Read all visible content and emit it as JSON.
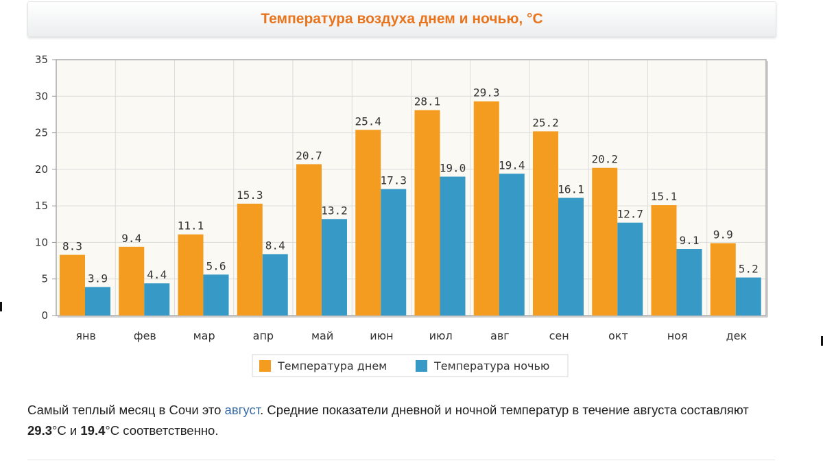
{
  "header": {
    "title": "Температура воздуха днем и ночью, °C"
  },
  "chart_data": {
    "type": "bar",
    "title": "Температура воздуха днем и ночью, °C",
    "categories": [
      "янв",
      "фев",
      "мар",
      "апр",
      "май",
      "июн",
      "июл",
      "авг",
      "сен",
      "окт",
      "ноя",
      "дек"
    ],
    "series": [
      {
        "name": "Температура днем",
        "color": "#f39c1f",
        "values": [
          8.3,
          9.4,
          11.1,
          15.3,
          20.7,
          25.4,
          28.1,
          29.3,
          25.2,
          20.2,
          15.1,
          9.9
        ]
      },
      {
        "name": "Температура ночью",
        "color": "#3799c6",
        "values": [
          3.9,
          4.4,
          5.6,
          8.4,
          13.2,
          17.3,
          19.0,
          19.4,
          16.1,
          12.7,
          9.1,
          5.2
        ]
      }
    ],
    "ylim": [
      0,
      35
    ],
    "yticks": [
      0,
      5,
      10,
      15,
      20,
      25,
      30,
      35
    ],
    "xlabel": "",
    "ylabel": "",
    "grid": true,
    "legend_position": "bottom-center"
  },
  "description": {
    "text_before": "Самый теплый месяц в Сочи это ",
    "link_text": "август",
    "text_after_link": ". Средние показатели дневной и ночной температур в течение августа составляют ",
    "day_value": "29.3",
    "unit_and_conj": "°C и ",
    "night_value": "19.4",
    "text_end": "°C соответственно."
  }
}
